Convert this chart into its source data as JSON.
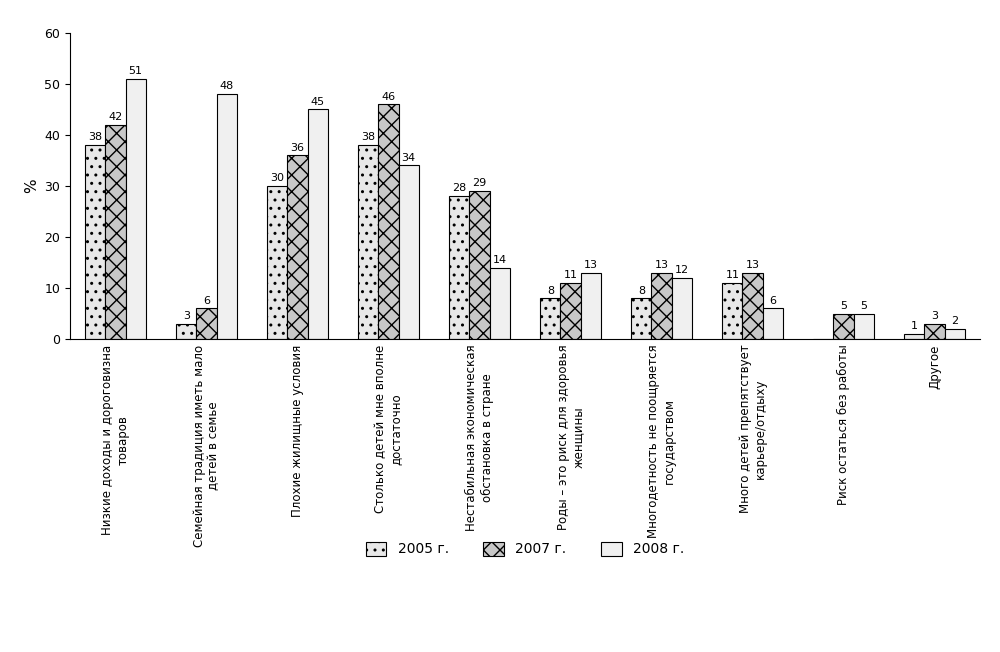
{
  "categories": [
    "Низкие доходы и дороговизна\nтоваров",
    "Семейная традиция иметь мало\nдетей в семье",
    "Плохие жилищные условия",
    "Столько детей мне вполне\nдостаточно",
    "Нестабильная экономическая\nобстановка в стране",
    "Роды – это риск для здоровья\nженщины",
    "Многодетность не поощряется\nгосударством",
    "Много детей препятствует\nкарьере/отдыху",
    "Риск остаться без работы",
    "Другое"
  ],
  "series": {
    "2005 г.": [
      38,
      3,
      30,
      38,
      28,
      8,
      8,
      11,
      0,
      1
    ],
    "2007 г.": [
      42,
      6,
      36,
      46,
      29,
      11,
      13,
      13,
      5,
      3
    ],
    "2008 г.": [
      51,
      48,
      45,
      34,
      14,
      13,
      12,
      6,
      5,
      2
    ]
  },
  "series_order": [
    "2005 г.",
    "2007 г.",
    "2008 г."
  ],
  "bar_styles": [
    {
      "facecolor": "#e8e8e8",
      "edgecolor": "#000000",
      "hatch": "..",
      "linewidth": 0.8
    },
    {
      "facecolor": "#c8c8c8",
      "edgecolor": "#000000",
      "hatch": "xx",
      "linewidth": 0.8
    },
    {
      "facecolor": "#f0f0f0",
      "edgecolor": "#000000",
      "hatch": "",
      "linewidth": 0.8
    }
  ],
  "ylabel": "%",
  "ylim": [
    0,
    60
  ],
  "yticks": [
    0,
    10,
    20,
    30,
    40,
    50,
    60
  ],
  "figsize": [
    10.0,
    6.52
  ],
  "dpi": 100,
  "background_color": "#ffffff",
  "bar_width": 0.22
}
